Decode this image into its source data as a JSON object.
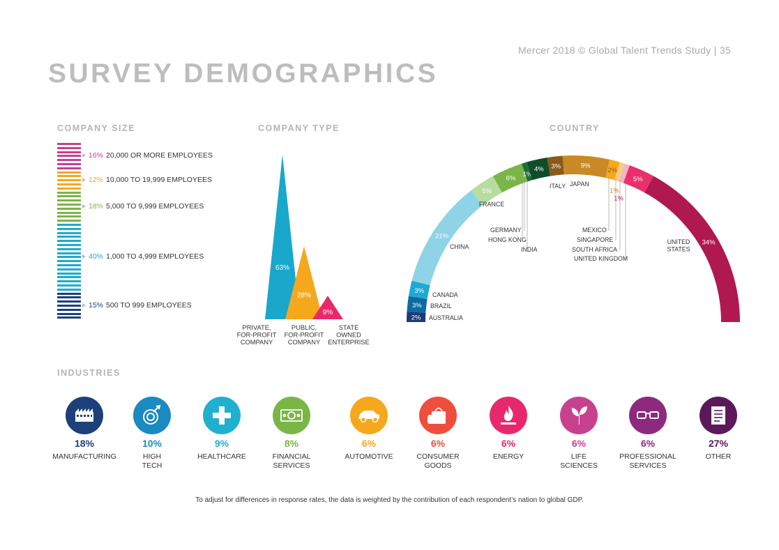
{
  "header": {
    "page_ref": "Mercer 2018 © Global Talent Trends Study  |  35",
    "title": "SURVEY DEMOGRAPHICS"
  },
  "sections": {
    "company_size": "COMPANY SIZE",
    "company_type": "COMPANY TYPE",
    "country": "COUNTRY",
    "industries": "INDUSTRIES"
  },
  "footnote": "To adjust for differences in response rates, the data is weighted by the contribution of each respondent’s nation to global GDP.",
  "chart_data": [
    {
      "type": "bar",
      "title": "COMPANY SIZE",
      "categories": [
        "20,000 OR MORE EMPLOYEES",
        "10,000 TO 19,999 EMPLOYEES",
        "5,000 TO 9,999 EMPLOYEES",
        "1,000 TO 4,999 EMPLOYEES",
        "500 TO 999 EMPLOYEES"
      ],
      "labels": [
        "16%",
        "12%",
        "18%",
        "40%",
        "15%"
      ],
      "values": [
        16,
        12,
        18,
        40,
        15
      ],
      "colors": [
        "#c7418f",
        "#f6a81c",
        "#7ab547",
        "#1eaacb",
        "#1d3f7a"
      ]
    },
    {
      "type": "area",
      "title": "COMPANY TYPE",
      "categories": [
        {
          "lines": [
            "PRIVATE,",
            "FOR-PROFIT",
            "COMPANY"
          ]
        },
        {
          "lines": [
            "PUBLIC,",
            "FOR-PROFIT",
            "COMPANY"
          ]
        },
        {
          "lines": [
            "STATE",
            "OWNED",
            "ENTERPRISE"
          ]
        }
      ],
      "labels": [
        "63%",
        "28%",
        "9%"
      ],
      "values": [
        63,
        28,
        9
      ],
      "colors": [
        "#19a7cc",
        "#f6a81c",
        "#e8286d"
      ]
    },
    {
      "type": "pie",
      "title": "COUNTRY",
      "slices": [
        {
          "name": "AUSTRALIA",
          "label": "2%",
          "value": 2,
          "color": "#1b3c78"
        },
        {
          "name": "BRAZIL",
          "label": "3%",
          "value": 3,
          "color": "#0e6aa3"
        },
        {
          "name": "CANADA",
          "label": "3%",
          "value": 3,
          "color": "#1fa8d3"
        },
        {
          "name": "CHINA",
          "label": "21%",
          "value": 21,
          "color": "#8fd3e6"
        },
        {
          "name": "FRANCE",
          "label": "5%",
          "value": 5,
          "color": "#b6dca0"
        },
        {
          "name": "GERMANY",
          "label": "6%",
          "value": 6,
          "color": "#7ab547"
        },
        {
          "name": "HONG KONG",
          "label": "1%",
          "value": 1,
          "color": "#1d6b38"
        },
        {
          "name": "INDIA",
          "label": "4%",
          "value": 4,
          "color": "#0f4d2a"
        },
        {
          "name": "ITALY",
          "label": "3%",
          "value": 3,
          "color": "#8a5a1c"
        },
        {
          "name": "JAPAN",
          "label": "9%",
          "value": 9,
          "color": "#c98a25"
        },
        {
          "name": "MEXICO",
          "label": "2%",
          "value": 2,
          "color": "#f6a81c"
        },
        {
          "name": "SINGAPORE",
          "label": "1%",
          "value": 1,
          "color": "#f7cc85"
        },
        {
          "name": "SOUTH AFRICA",
          "label": "1%",
          "value": 1,
          "color": "#f3b6c2"
        },
        {
          "name": "UNITED KINGDOM",
          "label": "5%",
          "value": 5,
          "color": "#e8306c"
        },
        {
          "name": "UNITED STATES",
          "label": "34%",
          "value": 34,
          "color": "#b01850"
        }
      ],
      "united_states_lines": [
        "UNITED",
        "STATES"
      ]
    }
  ],
  "industries": [
    {
      "pct": "18%",
      "lines": [
        "MANUFACTURING"
      ],
      "color": "#1d3f7a",
      "icon": "factory-icon"
    },
    {
      "pct": "10%",
      "lines": [
        "HIGH",
        "TECH"
      ],
      "color": "#1a8ac0",
      "icon": "satellite-dish-icon"
    },
    {
      "pct": "9%",
      "lines": [
        "HEALTHCARE"
      ],
      "color": "#1fb0cf",
      "icon": "medical-cross-icon"
    },
    {
      "pct": "8%",
      "lines": [
        "FINANCIAL",
        "SERVICES"
      ],
      "color": "#7ab547",
      "icon": "banknote-icon"
    },
    {
      "pct": "6%",
      "lines": [
        "AUTOMOTIVE"
      ],
      "color": "#f6a81c",
      "icon": "car-icon"
    },
    {
      "pct": "6%",
      "lines": [
        "CONSUMER",
        "GOODS"
      ],
      "color": "#ef4e3c",
      "icon": "shopping-bags-icon"
    },
    {
      "pct": "6%",
      "lines": [
        "ENERGY"
      ],
      "color": "#e8286d",
      "icon": "flame-icon"
    },
    {
      "pct": "6%",
      "lines": [
        "LIFE",
        "SCIENCES"
      ],
      "color": "#c7418f",
      "icon": "sprout-icon"
    },
    {
      "pct": "6%",
      "lines": [
        "PROFESSIONAL",
        "SERVICES"
      ],
      "color": "#8d2a7e",
      "icon": "glasses-icon"
    },
    {
      "pct": "27%",
      "lines": [
        "OTHER"
      ],
      "color": "#5a1a5a",
      "icon": "document-icon"
    }
  ]
}
